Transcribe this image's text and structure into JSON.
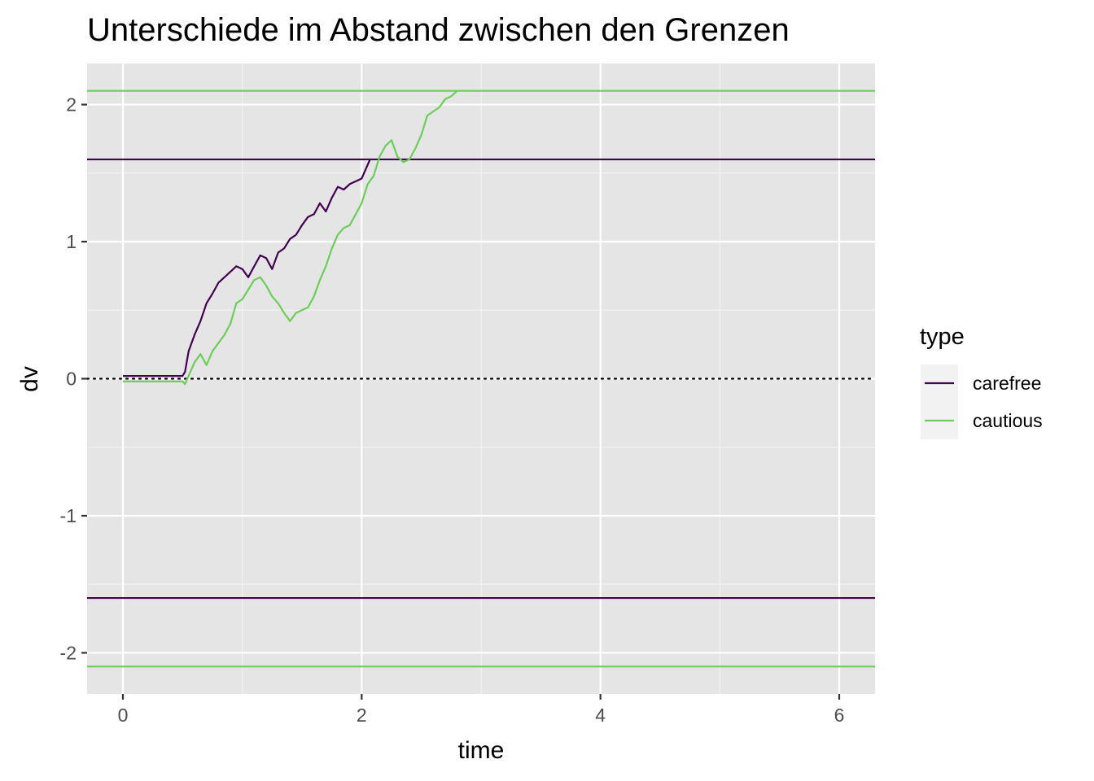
{
  "chart_data": {
    "type": "line",
    "title": "Unterschiede im Abstand zwischen den Grenzen",
    "xlabel": "time",
    "ylabel": "dv",
    "xlim": [
      -0.3,
      6.3
    ],
    "ylim": [
      -2.3,
      2.3
    ],
    "x_ticks": [
      0,
      2,
      4,
      6
    ],
    "x_tick_labels": [
      "0",
      "2",
      "4",
      "6"
    ],
    "y_ticks": [
      -2,
      -1,
      0,
      1,
      2
    ],
    "y_tick_labels": [
      "-2",
      "-1",
      "0",
      "1",
      "2"
    ],
    "grid": true,
    "legend": {
      "title": "type",
      "position": "right",
      "entries": [
        "carefree",
        "cautious"
      ]
    },
    "series": [
      {
        "name": "carefree",
        "color": "#440154",
        "x": [
          0,
          0.5,
          0.52,
          0.55,
          0.6,
          0.65,
          0.7,
          0.75,
          0.8,
          0.85,
          0.9,
          0.95,
          1.0,
          1.05,
          1.1,
          1.15,
          1.2,
          1.25,
          1.3,
          1.35,
          1.4,
          1.45,
          1.5,
          1.55,
          1.6,
          1.65,
          1.7,
          1.75,
          1.8,
          1.85,
          1.9,
          1.95,
          2.0,
          2.03,
          2.07
        ],
        "y": [
          0.02,
          0.02,
          0.05,
          0.2,
          0.32,
          0.42,
          0.55,
          0.62,
          0.7,
          0.74,
          0.78,
          0.82,
          0.8,
          0.74,
          0.82,
          0.9,
          0.88,
          0.8,
          0.92,
          0.95,
          1.02,
          1.05,
          1.12,
          1.18,
          1.2,
          1.28,
          1.22,
          1.32,
          1.4,
          1.38,
          1.42,
          1.44,
          1.46,
          1.52,
          1.6
        ]
      },
      {
        "name": "cautious",
        "color": "#6CCE59",
        "x": [
          0,
          0.5,
          0.52,
          0.55,
          0.6,
          0.65,
          0.7,
          0.75,
          0.8,
          0.85,
          0.9,
          0.95,
          1.0,
          1.05,
          1.1,
          1.15,
          1.2,
          1.25,
          1.3,
          1.35,
          1.4,
          1.45,
          1.5,
          1.55,
          1.6,
          1.65,
          1.7,
          1.75,
          1.8,
          1.85,
          1.9,
          1.95,
          2.0,
          2.05,
          2.1,
          2.15,
          2.2,
          2.25,
          2.3,
          2.35,
          2.4,
          2.45,
          2.5,
          2.55,
          2.6,
          2.65,
          2.7,
          2.75,
          2.8
        ],
        "y": [
          -0.02,
          -0.02,
          -0.04,
          0.02,
          0.12,
          0.18,
          0.1,
          0.2,
          0.26,
          0.32,
          0.4,
          0.55,
          0.58,
          0.65,
          0.72,
          0.74,
          0.68,
          0.6,
          0.55,
          0.48,
          0.42,
          0.48,
          0.5,
          0.52,
          0.6,
          0.72,
          0.82,
          0.95,
          1.05,
          1.1,
          1.12,
          1.2,
          1.28,
          1.42,
          1.48,
          1.62,
          1.7,
          1.74,
          1.62,
          1.58,
          1.6,
          1.68,
          1.78,
          1.92,
          1.95,
          1.98,
          2.04,
          2.06,
          2.1
        ]
      }
    ],
    "hlines": [
      {
        "y": 2.1,
        "color": "#6CCE59",
        "linetype": "solid"
      },
      {
        "y": 1.6,
        "color": "#440154",
        "linetype": "solid"
      },
      {
        "y": 0,
        "color": "#000000",
        "linetype": "dotted"
      },
      {
        "y": -1.6,
        "color": "#440154",
        "linetype": "solid"
      },
      {
        "y": -2.1,
        "color": "#6CCE59",
        "linetype": "solid"
      }
    ],
    "colors": {
      "panel_background": "#E5E5E5",
      "grid_major": "#FFFFFF",
      "grid_minor": "#F2F2F2",
      "legend_key_background": "#F2F2F2"
    }
  }
}
